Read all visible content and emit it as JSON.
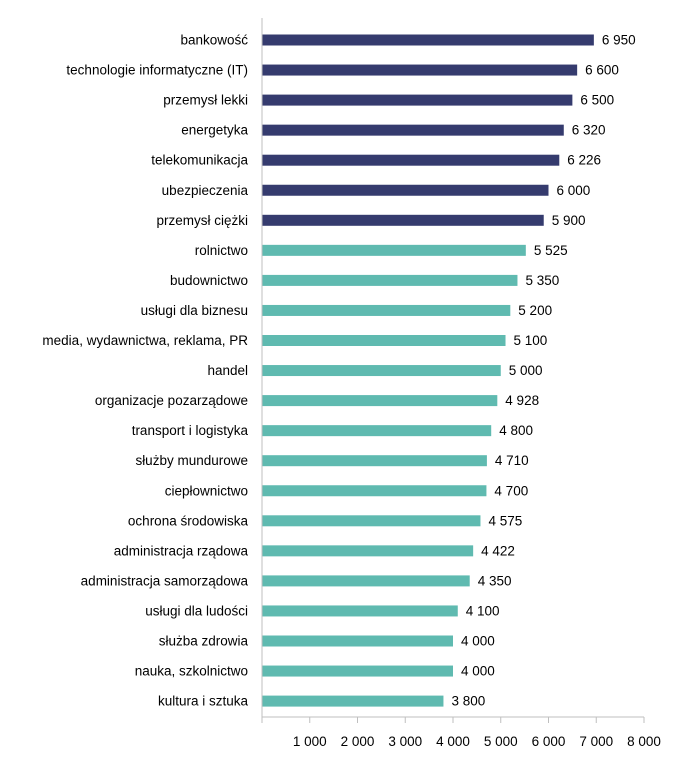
{
  "chart_data": {
    "type": "bar",
    "orientation": "horizontal",
    "categories": [
      "bankowość",
      "technologie informatyczne (IT)",
      "przemysł lekki",
      "energetyka",
      "telekomunikacja",
      "ubezpieczenia",
      "przemysł ciężki",
      "rolnictwo",
      "budownictwo",
      "usługi dla biznesu",
      "media, wydawnictwa, reklama, PR",
      "handel",
      "organizacje pozarządowe",
      "transport i logistyka",
      "służby mundurowe",
      "ciepłownictwo",
      "ochrona środowiska",
      "administracja rządowa",
      "administracja samorządowa",
      "usługi dla ludości",
      "służba zdrowia",
      "nauka, szkolnictwo",
      "kultura i sztuka"
    ],
    "values": [
      6950,
      6600,
      6500,
      6320,
      6226,
      6000,
      5900,
      5525,
      5350,
      5200,
      5100,
      5000,
      4928,
      4800,
      4710,
      4700,
      4575,
      4422,
      4350,
      4100,
      4000,
      4000,
      3800
    ],
    "value_labels": [
      "6 950",
      "6 600",
      "6 500",
      "6 320",
      "6 226",
      "6 000",
      "5 900",
      "5 525",
      "5 350",
      "5 200",
      "5 100",
      "5 000",
      "4 928",
      "4 800",
      "4 710",
      "4 700",
      "4 575",
      "4 422",
      "4 350",
      "4 100",
      "4 000",
      "4 000",
      "3 800"
    ],
    "xlim": [
      0,
      8000
    ],
    "x_ticks": [
      1000,
      2000,
      3000,
      4000,
      5000,
      6000,
      7000,
      8000
    ],
    "x_tick_labels": [
      "1 000",
      "2 000",
      "3 000",
      "4 000",
      "5 000",
      "6 000",
      "7 000",
      "8 000"
    ],
    "highlight_count": 7,
    "colors": {
      "highlight": "#353b6e",
      "default": "#5fbab0",
      "axis": "#bfbfbf",
      "text": "#000000"
    },
    "grid": false,
    "legend": "none",
    "title": "",
    "xlabel": "",
    "ylabel": ""
  }
}
